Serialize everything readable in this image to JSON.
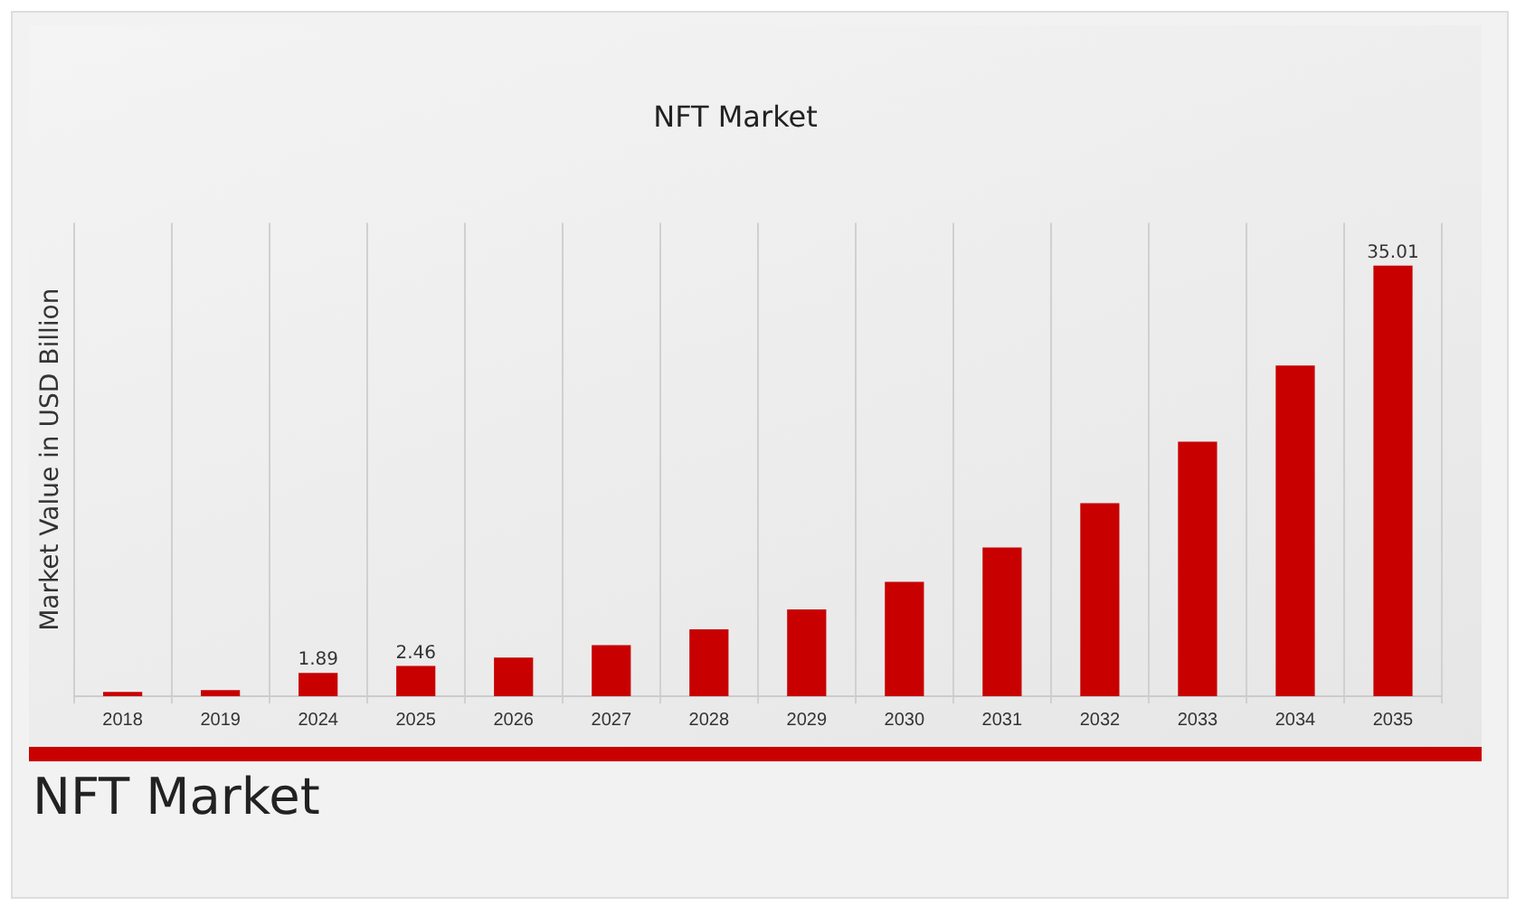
{
  "chart_data": {
    "type": "bar",
    "title": "NFT Market",
    "ylabel": "Market Value in USD Billion",
    "categories": [
      "2018",
      "2019",
      "2024",
      "2025",
      "2026",
      "2027",
      "2028",
      "2029",
      "2030",
      "2031",
      "2032",
      "2033",
      "2034",
      "2035"
    ],
    "values": [
      0.35,
      0.5,
      1.89,
      2.46,
      3.15,
      4.15,
      5.45,
      7.05,
      9.3,
      12.1,
      15.7,
      20.7,
      26.9,
      35.01
    ],
    "value_labels": [
      null,
      null,
      "1.89",
      "2.46",
      null,
      null,
      null,
      null,
      null,
      null,
      null,
      null,
      null,
      "35.01"
    ],
    "color": "#c80000",
    "ylim": [
      0,
      38.5
    ],
    "tick_labels": "x",
    "grid": "x",
    "legend": false,
    "annotations": [
      "NFT Market"
    ]
  }
}
